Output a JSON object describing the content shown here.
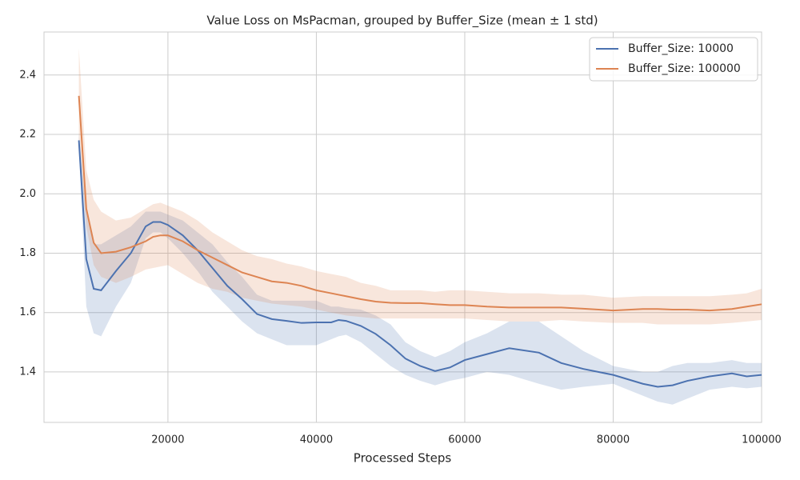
{
  "chart_data": {
    "type": "line",
    "title": "Value Loss on MsPacman, grouped by Buffer_Size (mean ± 1 std)",
    "x_label": "Processed Steps",
    "x": [
      8000,
      9000,
      10000,
      11000,
      13000,
      15000,
      17000,
      18000,
      19000,
      20000,
      22000,
      24000,
      26000,
      28000,
      30000,
      32000,
      34000,
      36000,
      38000,
      40000,
      42000,
      43000,
      44000,
      46000,
      48000,
      50000,
      52000,
      54000,
      56000,
      58000,
      60000,
      63000,
      66000,
      70000,
      73000,
      76000,
      80000,
      84000,
      86000,
      88000,
      90000,
      93000,
      96000,
      98000,
      100000
    ],
    "series": [
      {
        "name": "Buffer_Size: 10000",
        "color": "#4c72b0",
        "values": [
          2.18,
          1.78,
          1.68,
          1.675,
          1.74,
          1.8,
          1.89,
          1.905,
          1.905,
          1.895,
          1.86,
          1.81,
          1.75,
          1.69,
          1.645,
          1.595,
          1.578,
          1.572,
          1.565,
          1.567,
          1.567,
          1.575,
          1.572,
          1.555,
          1.528,
          1.49,
          1.445,
          1.42,
          1.403,
          1.415,
          1.44,
          1.46,
          1.48,
          1.465,
          1.43,
          1.41,
          1.39,
          1.36,
          1.35,
          1.355,
          1.37,
          1.385,
          1.395,
          1.385,
          1.39
        ],
        "lower": [
          2.16,
          1.62,
          1.53,
          1.52,
          1.62,
          1.7,
          1.85,
          1.87,
          1.87,
          1.85,
          1.8,
          1.74,
          1.67,
          1.62,
          1.57,
          1.53,
          1.51,
          1.49,
          1.49,
          1.49,
          1.51,
          1.52,
          1.525,
          1.5,
          1.46,
          1.42,
          1.39,
          1.37,
          1.355,
          1.37,
          1.38,
          1.4,
          1.39,
          1.36,
          1.34,
          1.35,
          1.36,
          1.32,
          1.3,
          1.29,
          1.31,
          1.34,
          1.35,
          1.345,
          1.35
        ],
        "upper": [
          2.2,
          1.94,
          1.83,
          1.83,
          1.86,
          1.89,
          1.94,
          1.94,
          1.94,
          1.93,
          1.91,
          1.87,
          1.83,
          1.77,
          1.72,
          1.66,
          1.64,
          1.64,
          1.64,
          1.64,
          1.62,
          1.62,
          1.615,
          1.61,
          1.59,
          1.56,
          1.5,
          1.47,
          1.45,
          1.47,
          1.5,
          1.53,
          1.57,
          1.57,
          1.52,
          1.47,
          1.42,
          1.4,
          1.4,
          1.42,
          1.43,
          1.43,
          1.44,
          1.43,
          1.43
        ]
      },
      {
        "name": "Buffer_Size: 100000",
        "color": "#dd8452",
        "values": [
          2.33,
          1.95,
          1.835,
          1.8,
          1.805,
          1.82,
          1.84,
          1.855,
          1.86,
          1.86,
          1.84,
          1.81,
          1.785,
          1.76,
          1.735,
          1.72,
          1.705,
          1.7,
          1.69,
          1.675,
          1.665,
          1.66,
          1.655,
          1.645,
          1.637,
          1.633,
          1.632,
          1.632,
          1.628,
          1.625,
          1.625,
          1.62,
          1.617,
          1.617,
          1.617,
          1.613,
          1.607,
          1.612,
          1.612,
          1.61,
          1.61,
          1.607,
          1.612,
          1.62,
          1.628
        ],
        "lower": [
          2.18,
          1.89,
          1.76,
          1.72,
          1.7,
          1.72,
          1.745,
          1.75,
          1.755,
          1.76,
          1.73,
          1.7,
          1.68,
          1.67,
          1.65,
          1.64,
          1.63,
          1.625,
          1.62,
          1.61,
          1.6,
          1.595,
          1.59,
          1.585,
          1.58,
          1.58,
          1.58,
          1.58,
          1.58,
          1.58,
          1.58,
          1.575,
          1.57,
          1.57,
          1.575,
          1.57,
          1.565,
          1.565,
          1.56,
          1.56,
          1.56,
          1.56,
          1.565,
          1.57,
          1.575
        ],
        "upper": [
          2.49,
          2.08,
          1.98,
          1.94,
          1.91,
          1.92,
          1.95,
          1.965,
          1.97,
          1.96,
          1.94,
          1.91,
          1.87,
          1.84,
          1.81,
          1.79,
          1.78,
          1.765,
          1.755,
          1.74,
          1.73,
          1.725,
          1.72,
          1.7,
          1.69,
          1.675,
          1.675,
          1.675,
          1.67,
          1.675,
          1.675,
          1.67,
          1.665,
          1.665,
          1.66,
          1.66,
          1.65,
          1.655,
          1.655,
          1.655,
          1.655,
          1.655,
          1.66,
          1.665,
          1.68
        ]
      }
    ],
    "xlim": [
      3300,
      100000
    ],
    "ylim": [
      1.23,
      2.545
    ],
    "xticks": [
      20000,
      40000,
      60000,
      80000,
      100000
    ],
    "yticks": [
      1.4,
      1.6,
      1.8,
      {
        "value": 2,
        "label": "2.0"
      },
      2.2,
      2.4
    ],
    "grid": true,
    "legend": "upper right"
  }
}
